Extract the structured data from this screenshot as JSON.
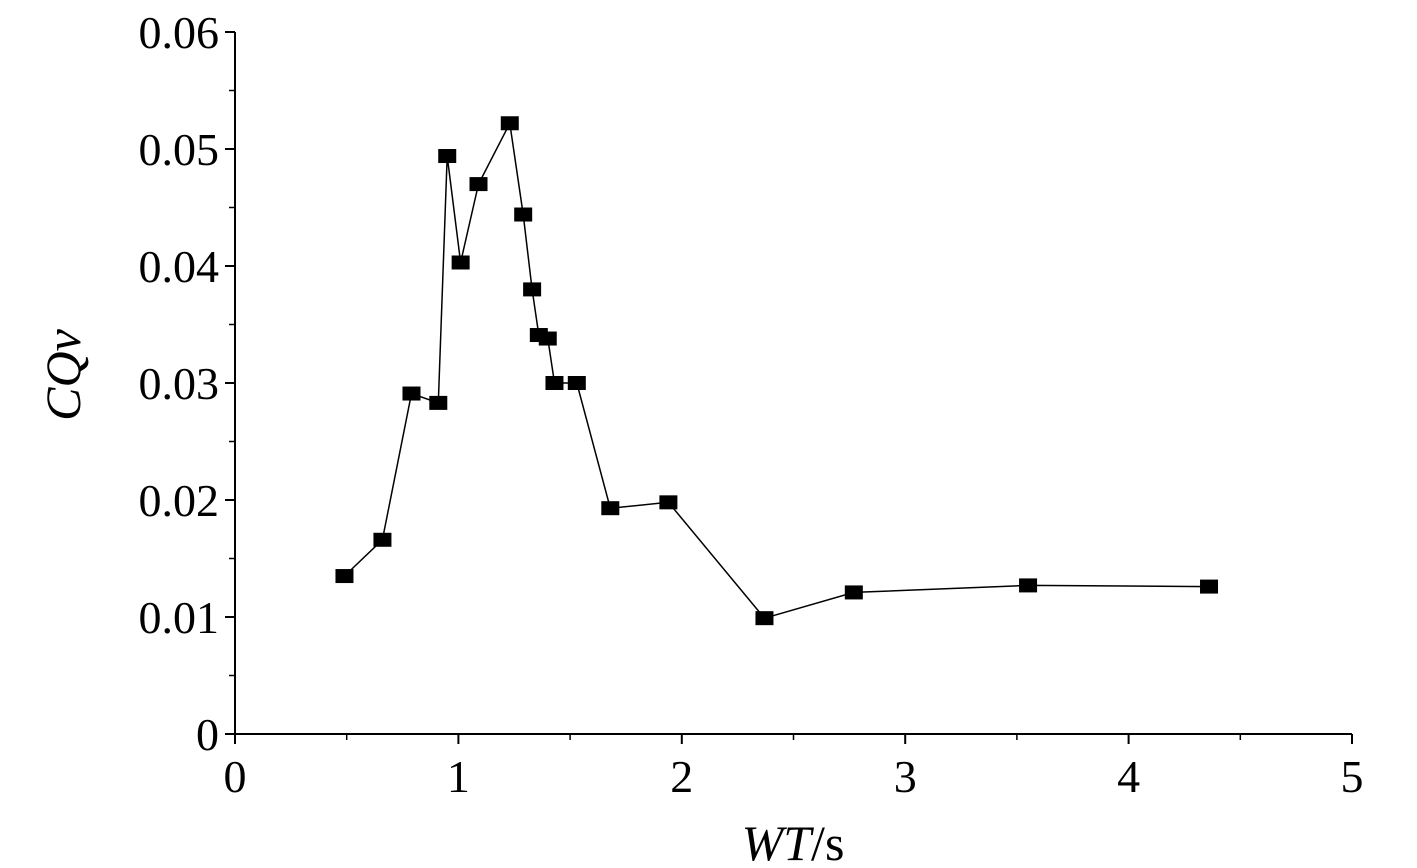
{
  "chart_data": {
    "type": "line",
    "title": "",
    "xlabel_italic": "WT",
    "xlabel_unit": "/s",
    "ylabel": "CQv",
    "xlim": [
      0,
      5
    ],
    "ylim": [
      0,
      0.06
    ],
    "x_ticks": [
      "0",
      "1",
      "2",
      "3",
      "4",
      "5"
    ],
    "y_ticks": [
      "0",
      "0.01",
      "0.02",
      "0.03",
      "0.04",
      "0.05",
      "0.06"
    ],
    "grid": false,
    "marker": "square",
    "series": [
      {
        "points": [
          {
            "x": 0.49,
            "y": 0.0135
          },
          {
            "x": 0.66,
            "y": 0.0166
          },
          {
            "x": 0.79,
            "y": 0.0291
          },
          {
            "x": 0.91,
            "y": 0.0283
          },
          {
            "x": 0.95,
            "y": 0.0494
          },
          {
            "x": 1.01,
            "y": 0.0403
          },
          {
            "x": 1.09,
            "y": 0.047
          },
          {
            "x": 1.23,
            "y": 0.0522
          },
          {
            "x": 1.29,
            "y": 0.0444
          },
          {
            "x": 1.33,
            "y": 0.038
          },
          {
            "x": 1.36,
            "y": 0.0341
          },
          {
            "x": 1.4,
            "y": 0.0338
          },
          {
            "x": 1.43,
            "y": 0.03
          },
          {
            "x": 1.53,
            "y": 0.03
          },
          {
            "x": 1.68,
            "y": 0.0193
          },
          {
            "x": 1.94,
            "y": 0.0198
          },
          {
            "x": 2.37,
            "y": 0.0099
          },
          {
            "x": 2.77,
            "y": 0.0121
          },
          {
            "x": 3.55,
            "y": 0.0127
          },
          {
            "x": 4.36,
            "y": 0.0126
          }
        ]
      }
    ]
  }
}
